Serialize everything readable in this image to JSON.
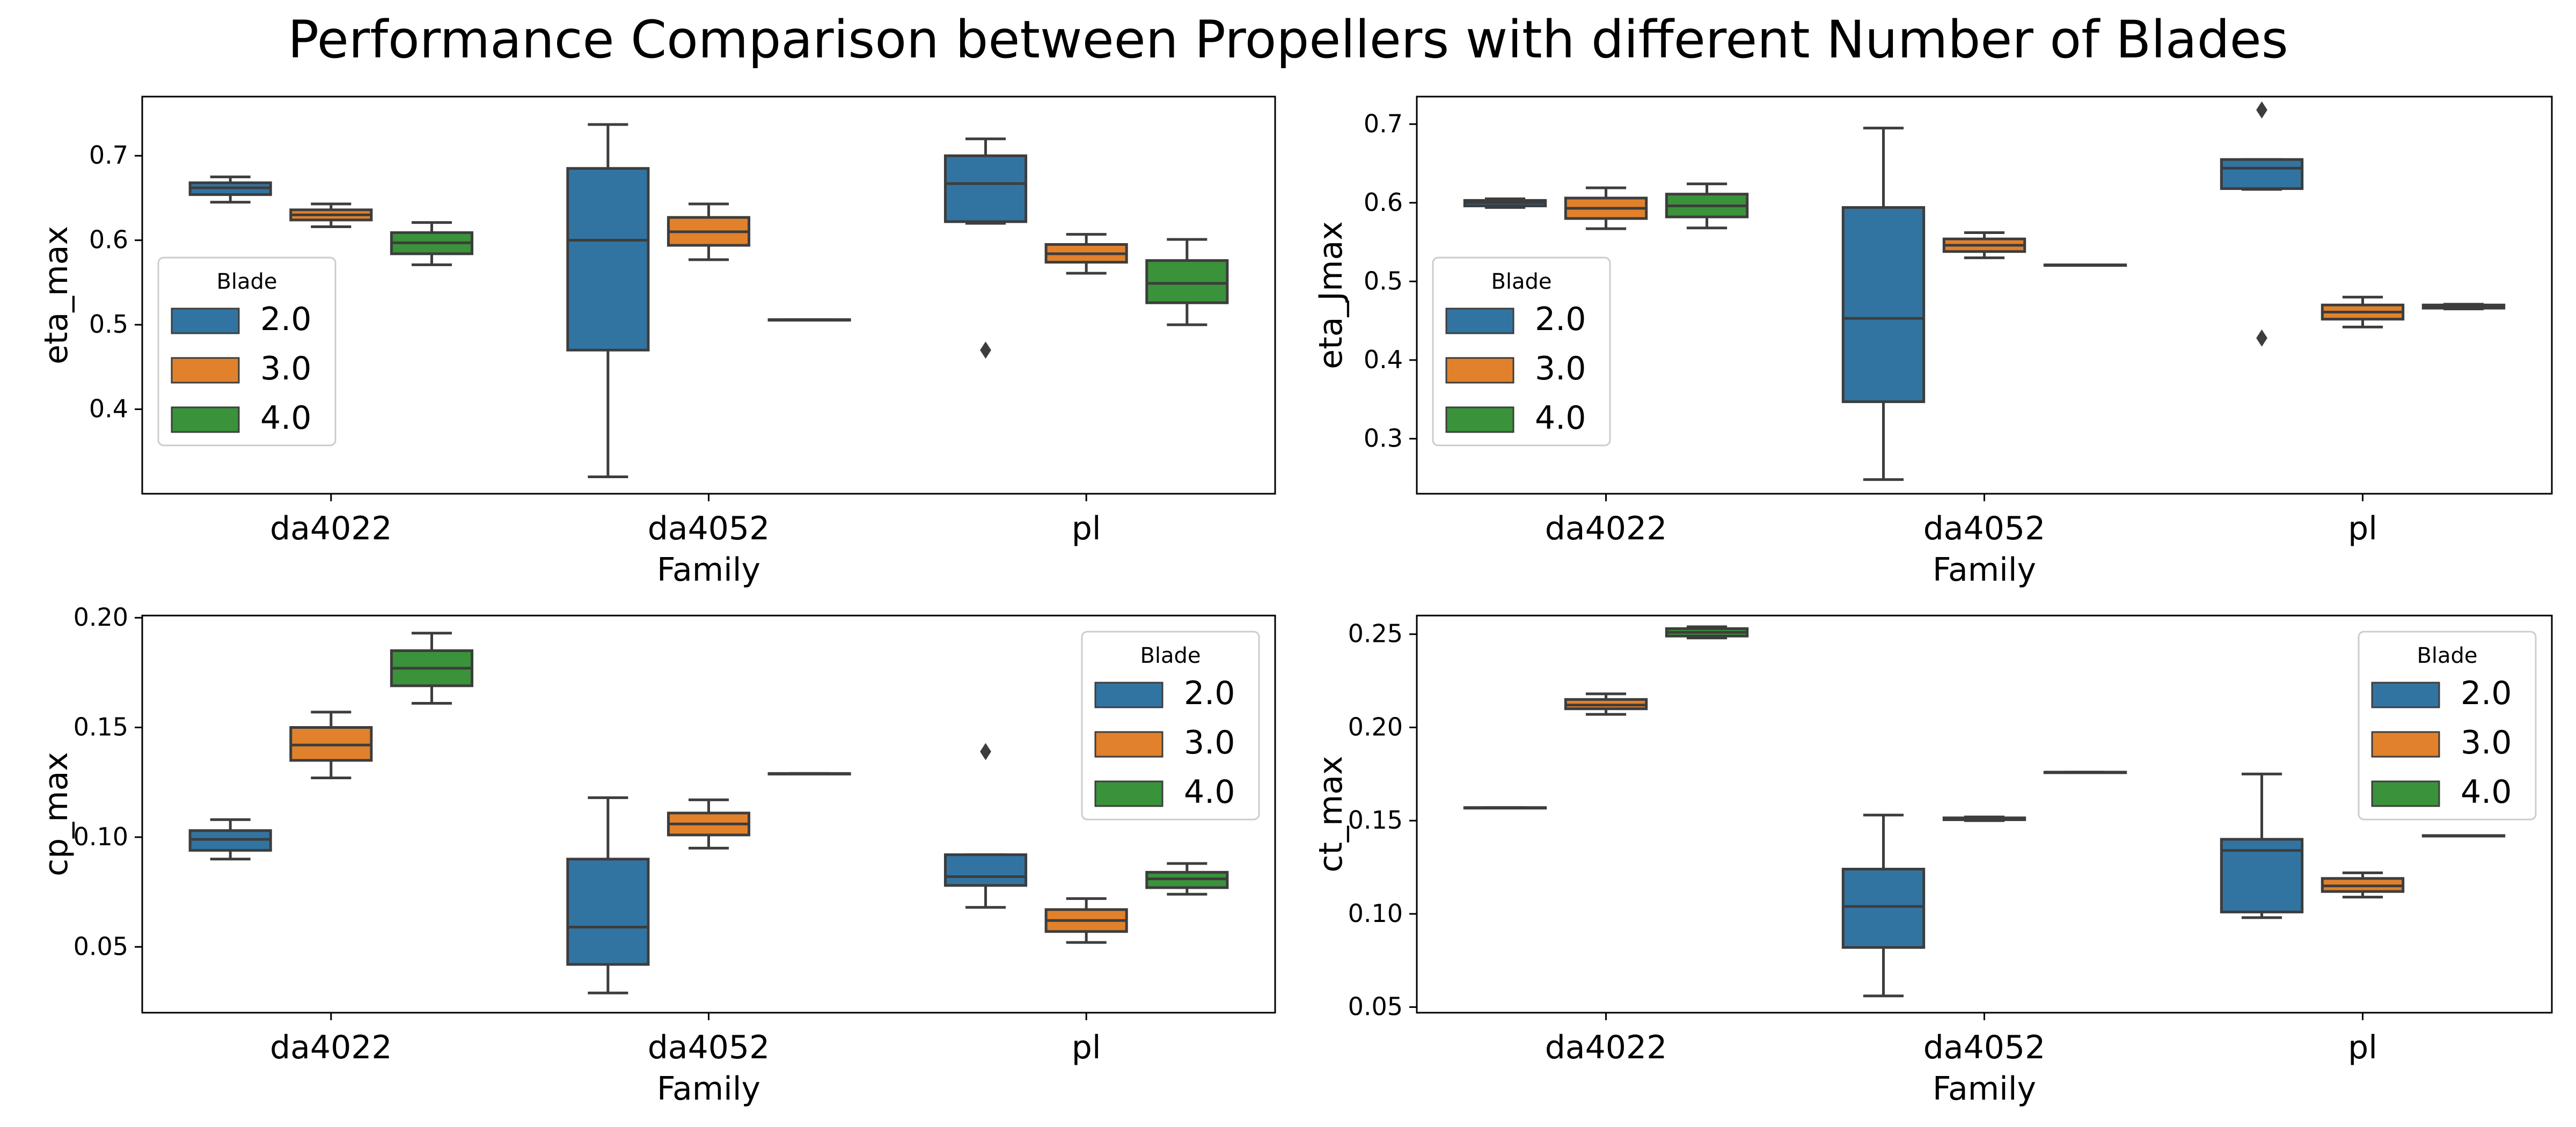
{
  "title": "Performance Comparison between Propellers with different Number of Blades",
  "colors": {
    "2.0": "#3274a1",
    "3.0": "#e1812c",
    "4.0": "#3a923a",
    "line": "#3d3d3d"
  },
  "chart_data": [
    {
      "type": "box",
      "ylabel": "eta_max",
      "xlabel": "Family",
      "categories": [
        "da4022",
        "da4052",
        "pl"
      ],
      "legend_title": "Blade",
      "legend_labels": [
        "2.0",
        "3.0",
        "4.0"
      ],
      "legend_position": "center-left",
      "ylim": [
        0.3,
        0.77
      ],
      "yticks": [
        0.4,
        0.5,
        0.6,
        0.7
      ],
      "ytick_labels": [
        "0.4",
        "0.5",
        "0.6",
        "0.7"
      ],
      "series": [
        {
          "name": "2.0",
          "boxes": [
            {
              "category": "da4022",
              "whisker_low": 0.645,
              "q1": 0.654,
              "median": 0.662,
              "q3": 0.668,
              "whisker_high": 0.675,
              "outliers": []
            },
            {
              "category": "da4052",
              "whisker_low": 0.32,
              "q1": 0.47,
              "median": 0.6,
              "q3": 0.685,
              "whisker_high": 0.737,
              "outliers": []
            },
            {
              "category": "pl",
              "whisker_low": 0.62,
              "q1": 0.622,
              "median": 0.667,
              "q3": 0.7,
              "whisker_high": 0.72,
              "outliers": [
                0.47
              ]
            }
          ]
        },
        {
          "name": "3.0",
          "boxes": [
            {
              "category": "da4022",
              "whisker_low": 0.616,
              "q1": 0.624,
              "median": 0.63,
              "q3": 0.636,
              "whisker_high": 0.643,
              "outliers": []
            },
            {
              "category": "da4052",
              "whisker_low": 0.577,
              "q1": 0.594,
              "median": 0.61,
              "q3": 0.627,
              "whisker_high": 0.643,
              "outliers": []
            },
            {
              "category": "pl",
              "whisker_low": 0.561,
              "q1": 0.574,
              "median": 0.584,
              "q3": 0.595,
              "whisker_high": 0.607,
              "outliers": []
            }
          ]
        },
        {
          "name": "4.0",
          "boxes": [
            {
              "category": "da4022",
              "whisker_low": 0.571,
              "q1": 0.584,
              "median": 0.597,
              "q3": 0.609,
              "whisker_high": 0.621,
              "outliers": []
            },
            {
              "category": "da4052",
              "whisker_low": 0.506,
              "q1": 0.506,
              "median": 0.506,
              "q3": 0.506,
              "whisker_high": 0.506,
              "outliers": []
            },
            {
              "category": "pl",
              "whisker_low": 0.5,
              "q1": 0.526,
              "median": 0.549,
              "q3": 0.576,
              "whisker_high": 0.601,
              "outliers": []
            }
          ]
        }
      ]
    },
    {
      "type": "box",
      "ylabel": "eta_Jmax",
      "xlabel": "Family",
      "categories": [
        "da4022",
        "da4052",
        "pl"
      ],
      "legend_title": "Blade",
      "legend_labels": [
        "2.0",
        "3.0",
        "4.0"
      ],
      "legend_position": "center-left",
      "ylim": [
        0.23,
        0.735
      ],
      "yticks": [
        0.3,
        0.4,
        0.5,
        0.6,
        0.7
      ],
      "ytick_labels": [
        "0.3",
        "0.4",
        "0.5",
        "0.6",
        "0.7"
      ],
      "series": [
        {
          "name": "2.0",
          "boxes": [
            {
              "category": "da4022",
              "whisker_low": 0.594,
              "q1": 0.596,
              "median": 0.6,
              "q3": 0.603,
              "whisker_high": 0.605,
              "outliers": []
            },
            {
              "category": "da4052",
              "whisker_low": 0.248,
              "q1": 0.347,
              "median": 0.453,
              "q3": 0.594,
              "whisker_high": 0.695,
              "outliers": []
            },
            {
              "category": "pl",
              "whisker_low": 0.617,
              "q1": 0.618,
              "median": 0.644,
              "q3": 0.655,
              "whisker_high": 0.655,
              "outliers": [
                0.718,
                0.428
              ]
            }
          ]
        },
        {
          "name": "3.0",
          "boxes": [
            {
              "category": "da4022",
              "whisker_low": 0.567,
              "q1": 0.58,
              "median": 0.593,
              "q3": 0.606,
              "whisker_high": 0.619,
              "outliers": []
            },
            {
              "category": "da4052",
              "whisker_low": 0.53,
              "q1": 0.538,
              "median": 0.546,
              "q3": 0.554,
              "whisker_high": 0.562,
              "outliers": []
            },
            {
              "category": "pl",
              "whisker_low": 0.442,
              "q1": 0.452,
              "median": 0.461,
              "q3": 0.47,
              "whisker_high": 0.48,
              "outliers": []
            }
          ]
        },
        {
          "name": "4.0",
          "boxes": [
            {
              "category": "da4022",
              "whisker_low": 0.568,
              "q1": 0.582,
              "median": 0.596,
              "q3": 0.611,
              "whisker_high": 0.624,
              "outliers": []
            },
            {
              "category": "da4052",
              "whisker_low": 0.521,
              "q1": 0.521,
              "median": 0.521,
              "q3": 0.521,
              "whisker_high": 0.521,
              "outliers": []
            },
            {
              "category": "pl",
              "whisker_low": 0.465,
              "q1": 0.466,
              "median": 0.468,
              "q3": 0.47,
              "whisker_high": 0.471,
              "outliers": []
            }
          ]
        }
      ]
    },
    {
      "type": "box",
      "ylabel": "cp_max",
      "xlabel": "Family",
      "categories": [
        "da4022",
        "da4052",
        "pl"
      ],
      "legend_title": "Blade",
      "legend_labels": [
        "2.0",
        "3.0",
        "4.0"
      ],
      "legend_position": "upper-right",
      "ylim": [
        0.02,
        0.201
      ],
      "yticks": [
        0.05,
        0.1,
        0.15,
        0.2
      ],
      "ytick_labels": [
        "0.05",
        "0.10",
        "0.15",
        "0.20"
      ],
      "series": [
        {
          "name": "2.0",
          "boxes": [
            {
              "category": "da4022",
              "whisker_low": 0.09,
              "q1": 0.094,
              "median": 0.099,
              "q3": 0.103,
              "whisker_high": 0.108,
              "outliers": []
            },
            {
              "category": "da4052",
              "whisker_low": 0.029,
              "q1": 0.042,
              "median": 0.059,
              "q3": 0.09,
              "whisker_high": 0.118,
              "outliers": []
            },
            {
              "category": "pl",
              "whisker_low": 0.068,
              "q1": 0.078,
              "median": 0.082,
              "q3": 0.092,
              "whisker_high": 0.092,
              "outliers": [
                0.139
              ]
            }
          ]
        },
        {
          "name": "3.0",
          "boxes": [
            {
              "category": "da4022",
              "whisker_low": 0.127,
              "q1": 0.135,
              "median": 0.142,
              "q3": 0.15,
              "whisker_high": 0.157,
              "outliers": []
            },
            {
              "category": "da4052",
              "whisker_low": 0.095,
              "q1": 0.101,
              "median": 0.106,
              "q3": 0.111,
              "whisker_high": 0.117,
              "outliers": []
            },
            {
              "category": "pl",
              "whisker_low": 0.052,
              "q1": 0.057,
              "median": 0.062,
              "q3": 0.067,
              "whisker_high": 0.072,
              "outliers": []
            }
          ]
        },
        {
          "name": "4.0",
          "boxes": [
            {
              "category": "da4022",
              "whisker_low": 0.161,
              "q1": 0.169,
              "median": 0.177,
              "q3": 0.185,
              "whisker_high": 0.193,
              "outliers": []
            },
            {
              "category": "da4052",
              "whisker_low": 0.129,
              "q1": 0.129,
              "median": 0.129,
              "q3": 0.129,
              "whisker_high": 0.129,
              "outliers": []
            },
            {
              "category": "pl",
              "whisker_low": 0.074,
              "q1": 0.077,
              "median": 0.081,
              "q3": 0.084,
              "whisker_high": 0.088,
              "outliers": []
            }
          ]
        }
      ]
    },
    {
      "type": "box",
      "ylabel": "ct_max",
      "xlabel": "Family",
      "categories": [
        "da4022",
        "da4052",
        "pl"
      ],
      "legend_title": "Blade",
      "legend_labels": [
        "2.0",
        "3.0",
        "4.0"
      ],
      "legend_position": "upper-right",
      "ylim": [
        0.047,
        0.26
      ],
      "yticks": [
        0.05,
        0.1,
        0.15,
        0.2,
        0.25
      ],
      "ytick_labels": [
        "0.05",
        "0.10",
        "0.15",
        "0.20",
        "0.25"
      ],
      "series": [
        {
          "name": "2.0",
          "boxes": [
            {
              "category": "da4022",
              "whisker_low": 0.157,
              "q1": 0.157,
              "median": 0.157,
              "q3": 0.157,
              "whisker_high": 0.157,
              "outliers": []
            },
            {
              "category": "da4052",
              "whisker_low": 0.056,
              "q1": 0.082,
              "median": 0.104,
              "q3": 0.124,
              "whisker_high": 0.153,
              "outliers": []
            },
            {
              "category": "pl",
              "whisker_low": 0.098,
              "q1": 0.101,
              "median": 0.134,
              "q3": 0.14,
              "whisker_high": 0.175,
              "outliers": []
            }
          ]
        },
        {
          "name": "3.0",
          "boxes": [
            {
              "category": "da4022",
              "whisker_low": 0.207,
              "q1": 0.21,
              "median": 0.212,
              "q3": 0.215,
              "whisker_high": 0.218,
              "outliers": []
            },
            {
              "category": "da4052",
              "whisker_low": 0.15,
              "q1": 0.1505,
              "median": 0.151,
              "q3": 0.1515,
              "whisker_high": 0.152,
              "outliers": []
            },
            {
              "category": "pl",
              "whisker_low": 0.109,
              "q1": 0.112,
              "median": 0.115,
              "q3": 0.119,
              "whisker_high": 0.122,
              "outliers": []
            }
          ]
        },
        {
          "name": "4.0",
          "boxes": [
            {
              "category": "da4022",
              "whisker_low": 0.248,
              "q1": 0.249,
              "median": 0.251,
              "q3": 0.253,
              "whisker_high": 0.254,
              "outliers": []
            },
            {
              "category": "da4052",
              "whisker_low": 0.176,
              "q1": 0.176,
              "median": 0.176,
              "q3": 0.176,
              "whisker_high": 0.176,
              "outliers": []
            },
            {
              "category": "pl",
              "whisker_low": 0.142,
              "q1": 0.142,
              "median": 0.142,
              "q3": 0.142,
              "whisker_high": 0.142,
              "outliers": []
            }
          ]
        }
      ]
    }
  ]
}
